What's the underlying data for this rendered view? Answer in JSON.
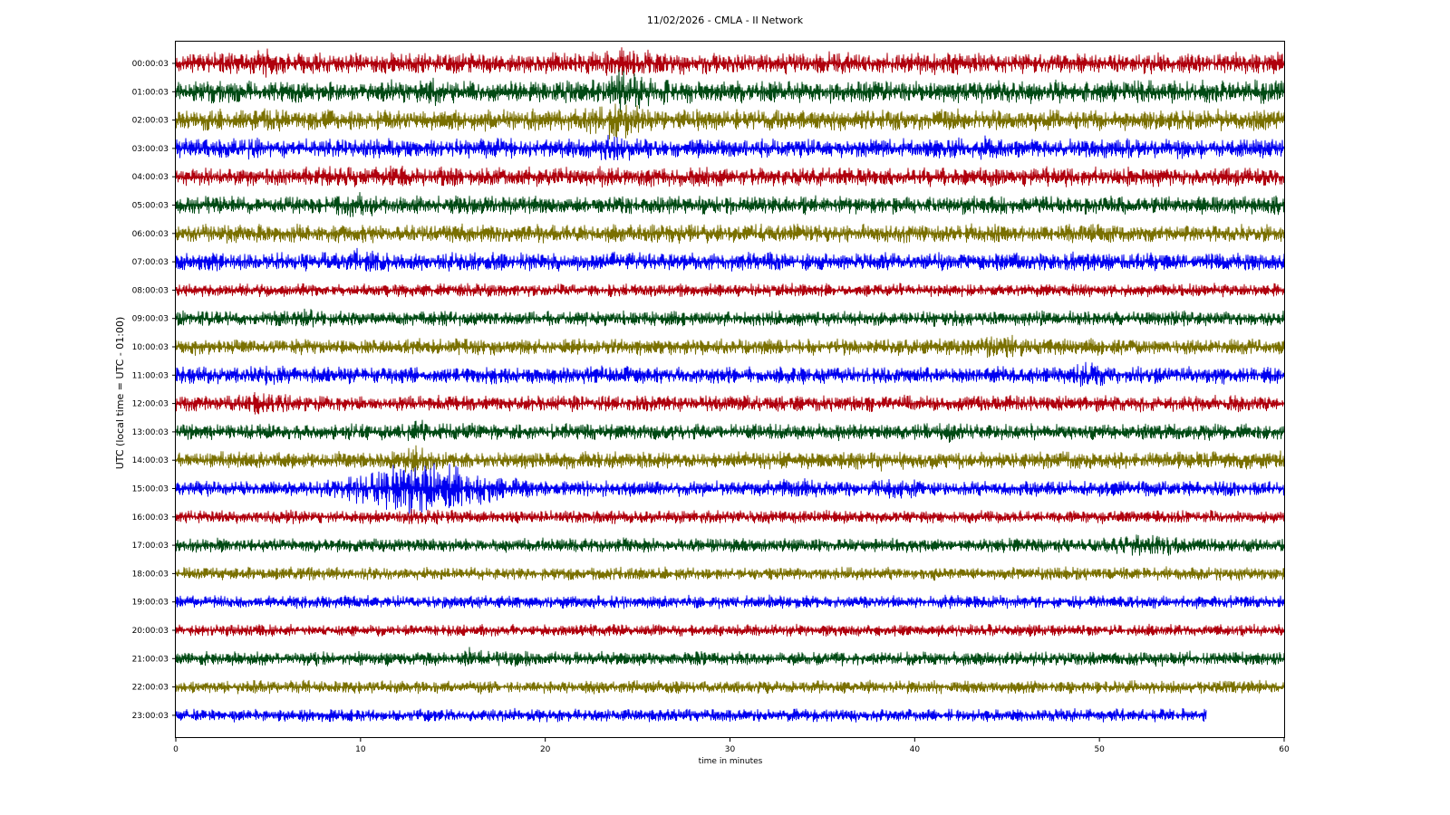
{
  "chart_data": {
    "type": "line",
    "title": "11/02/2026 - CMLA - II Network",
    "xlabel": "time in minutes",
    "ylabel": "UTC (local time = UTC - 01:00)",
    "xlim": [
      0,
      60
    ],
    "x_ticks": [
      0,
      10,
      20,
      30,
      40,
      50,
      60
    ],
    "x_tick_labels": [
      "0",
      "10",
      "20",
      "30",
      "40",
      "50",
      "60"
    ],
    "grid": false,
    "legend": "none",
    "colors": [
      "#b0000d",
      "#004a14",
      "#7a7000",
      "#0000f0"
    ],
    "row_labels": [
      "00:00:03",
      "01:00:03",
      "02:00:03",
      "03:00:03",
      "04:00:03",
      "05:00:03",
      "06:00:03",
      "07:00:03",
      "08:00:03",
      "09:00:03",
      "10:00:03",
      "11:00:03",
      "12:00:03",
      "13:00:03",
      "14:00:03",
      "15:00:03",
      "16:00:03",
      "17:00:03",
      "18:00:03",
      "19:00:03",
      "20:00:03",
      "21:00:03",
      "22:00:03",
      "23:00:03"
    ],
    "series": [
      {
        "row": 0,
        "color_index": 0,
        "end_minute": 60,
        "amplitude": 1.0,
        "events": [
          {
            "minute": 24.6,
            "amplitude": 1.6,
            "duration": 1.2
          },
          {
            "minute": 5.0,
            "amplitude": 1.4,
            "duration": 0.6
          }
        ]
      },
      {
        "row": 1,
        "color_index": 1,
        "end_minute": 60,
        "amplitude": 1.05,
        "events": [
          {
            "minute": 24.5,
            "amplitude": 1.9,
            "duration": 1.5
          },
          {
            "minute": 14.0,
            "amplitude": 1.3,
            "duration": 0.8
          }
        ]
      },
      {
        "row": 2,
        "color_index": 2,
        "end_minute": 60,
        "amplitude": 1.0,
        "events": [
          {
            "minute": 24.0,
            "amplitude": 1.8,
            "duration": 1.5
          }
        ]
      },
      {
        "row": 3,
        "color_index": 3,
        "end_minute": 60,
        "amplitude": 0.9,
        "events": [
          {
            "minute": 23.9,
            "amplitude": 1.7,
            "duration": 1.0
          },
          {
            "minute": 43.6,
            "amplitude": 1.4,
            "duration": 0.8
          },
          {
            "minute": 3.8,
            "amplitude": 1.3,
            "duration": 0.7
          }
        ]
      },
      {
        "row": 4,
        "color_index": 0,
        "end_minute": 60,
        "amplitude": 0.9,
        "events": [
          {
            "minute": 12.4,
            "amplitude": 1.3,
            "duration": 1.0
          }
        ]
      },
      {
        "row": 5,
        "color_index": 1,
        "end_minute": 60,
        "amplitude": 0.85,
        "events": [
          {
            "minute": 9.8,
            "amplitude": 1.3,
            "duration": 1.2
          }
        ]
      },
      {
        "row": 6,
        "color_index": 2,
        "end_minute": 60,
        "amplitude": 0.85,
        "events": []
      },
      {
        "row": 7,
        "color_index": 3,
        "end_minute": 60,
        "amplitude": 0.85,
        "events": [
          {
            "minute": 9.7,
            "amplitude": 1.4,
            "duration": 1.0
          }
        ]
      },
      {
        "row": 8,
        "color_index": 0,
        "end_minute": 60,
        "amplitude": 0.6,
        "events": []
      },
      {
        "row": 9,
        "color_index": 1,
        "end_minute": 60,
        "amplitude": 0.7,
        "events": [
          {
            "minute": 7.1,
            "amplitude": 1.3,
            "duration": 0.5
          }
        ]
      },
      {
        "row": 10,
        "color_index": 2,
        "end_minute": 60,
        "amplitude": 0.75,
        "events": [
          {
            "minute": 44.6,
            "amplitude": 1.5,
            "duration": 1.5
          }
        ]
      },
      {
        "row": 11,
        "color_index": 3,
        "end_minute": 60,
        "amplitude": 0.8,
        "events": [
          {
            "minute": 49.6,
            "amplitude": 1.6,
            "duration": 1.0
          },
          {
            "minute": 4.8,
            "amplitude": 1.2,
            "duration": 0.5
          }
        ]
      },
      {
        "row": 12,
        "color_index": 0,
        "end_minute": 60,
        "amplitude": 0.75,
        "events": [
          {
            "minute": 4.8,
            "amplitude": 1.7,
            "duration": 1.0
          }
        ]
      },
      {
        "row": 13,
        "color_index": 1,
        "end_minute": 60,
        "amplitude": 0.75,
        "events": [
          {
            "minute": 13.0,
            "amplitude": 1.6,
            "duration": 0.5
          },
          {
            "minute": 41.8,
            "amplitude": 1.5,
            "duration": 0.5
          }
        ]
      },
      {
        "row": 14,
        "color_index": 2,
        "end_minute": 60,
        "amplitude": 0.8,
        "events": [
          {
            "minute": 13.0,
            "amplitude": 2.2,
            "duration": 0.6
          },
          {
            "minute": 38.0,
            "amplitude": 1.5,
            "duration": 0.3
          }
        ]
      },
      {
        "row": 15,
        "color_index": 3,
        "end_minute": 60,
        "amplitude": 0.7,
        "events": [
          {
            "minute": 13.6,
            "amplitude": 3.4,
            "duration": 3.5
          },
          {
            "minute": 11.2,
            "amplitude": 1.6,
            "duration": 1.5
          },
          {
            "minute": 33.5,
            "amplitude": 1.4,
            "duration": 1.5
          },
          {
            "minute": 38.9,
            "amplitude": 1.5,
            "duration": 1.0
          }
        ]
      },
      {
        "row": 16,
        "color_index": 0,
        "end_minute": 60,
        "amplitude": 0.6,
        "events": [
          {
            "minute": 13.6,
            "amplitude": 1.4,
            "duration": 1.0
          }
        ]
      },
      {
        "row": 17,
        "color_index": 1,
        "end_minute": 60,
        "amplitude": 0.65,
        "events": [
          {
            "minute": 52.5,
            "amplitude": 1.5,
            "duration": 2.0
          }
        ]
      },
      {
        "row": 18,
        "color_index": 2,
        "end_minute": 60,
        "amplitude": 0.6,
        "events": []
      },
      {
        "row": 19,
        "color_index": 3,
        "end_minute": 60,
        "amplitude": 0.6,
        "events": []
      },
      {
        "row": 20,
        "color_index": 0,
        "end_minute": 60,
        "amplitude": 0.55,
        "events": []
      },
      {
        "row": 21,
        "color_index": 1,
        "end_minute": 60,
        "amplitude": 0.65,
        "events": [
          {
            "minute": 16.0,
            "amplitude": 1.6,
            "duration": 0.4
          },
          {
            "minute": 17.8,
            "amplitude": 1.2,
            "duration": 1.0
          }
        ]
      },
      {
        "row": 22,
        "color_index": 2,
        "end_minute": 60,
        "amplitude": 0.6,
        "events": []
      },
      {
        "row": 23,
        "color_index": 3,
        "end_minute": 55.8,
        "amplitude": 0.6,
        "events": []
      }
    ]
  }
}
